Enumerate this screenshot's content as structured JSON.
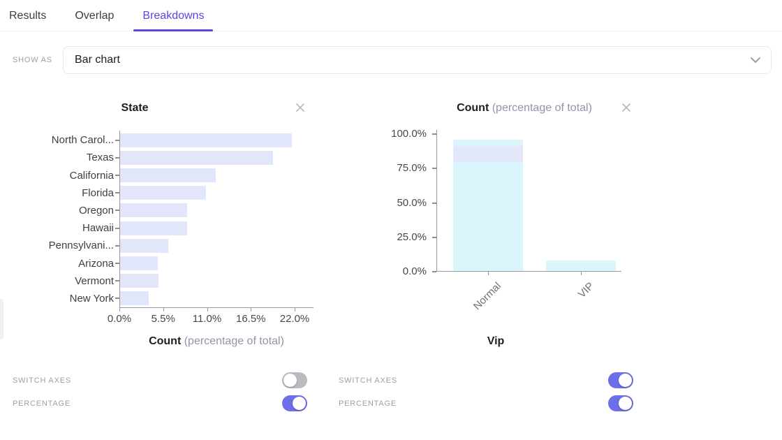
{
  "tabs": [
    {
      "label": "Results",
      "active": false
    },
    {
      "label": "Overlap",
      "active": false
    },
    {
      "label": "Breakdowns",
      "active": true
    }
  ],
  "show_as": {
    "label": "SHOW AS",
    "value": "Bar chart"
  },
  "colors": {
    "accent": "#5646e4",
    "toggle_on": "#6d6ee9",
    "toggle_off": "#b9bbc0",
    "bar_lavender": "#e2e6fb",
    "bar_cyan": "#daf6fc",
    "overlay_lavender": "#e5e4fa",
    "axis": "#96989e"
  },
  "panels": [
    {
      "controls": [
        {
          "label": "SWITCH AXES",
          "on": false
        },
        {
          "label": "PERCENTAGE",
          "on": true
        }
      ]
    },
    {
      "controls": [
        {
          "label": "SWITCH AXES",
          "on": true
        },
        {
          "label": "PERCENTAGE",
          "on": true
        }
      ]
    }
  ],
  "chart_data": [
    {
      "type": "bar",
      "orientation": "horizontal",
      "title": "State",
      "categories": [
        "North Carol...",
        "Texas",
        "California",
        "Florida",
        "Oregon",
        "Hawaii",
        "Pennsylvani...",
        "Arizona",
        "Vermont",
        "New York"
      ],
      "values": [
        21.6,
        19.2,
        12.0,
        10.8,
        8.4,
        8.4,
        6.0,
        4.7,
        4.8,
        3.6
      ],
      "x_ticks": [
        "0.0%",
        "5.5%",
        "11.0%",
        "16.5%",
        "22.0%"
      ],
      "xlim": [
        0,
        22
      ],
      "xlabel": "Count",
      "xlabel_suffix": "(percentage of total)",
      "bar_color": "#e2e6fb",
      "grid": false,
      "legend": false
    },
    {
      "type": "bar",
      "orientation": "vertical",
      "title": "Count",
      "title_suffix": "(percentage of total)",
      "categories": [
        "Normal",
        "VIP"
      ],
      "values": [
        95.4,
        7.5
      ],
      "overlay_band": {
        "category": "Normal",
        "from": 79,
        "to": 91,
        "color": "#e5e4fa"
      },
      "y_ticks": [
        "100.0%",
        "75.0%",
        "50.0%",
        "25.0%",
        "0.0%"
      ],
      "ylim": [
        0,
        100
      ],
      "xlabel": "Vip",
      "bar_color": "#daf6fc",
      "grid": false,
      "legend": false
    }
  ]
}
